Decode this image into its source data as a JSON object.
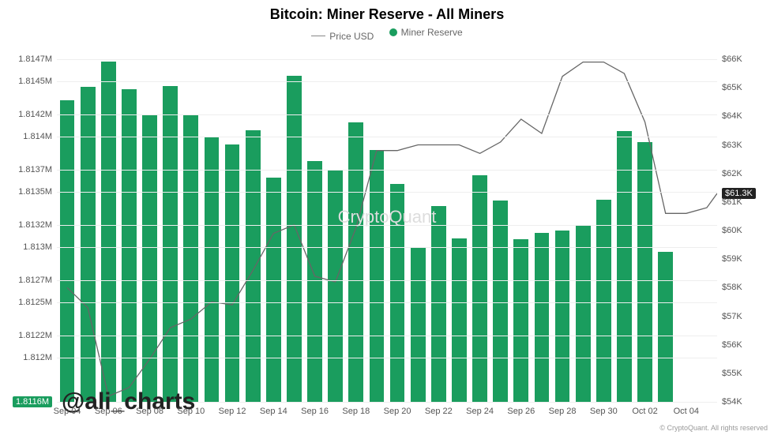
{
  "chart": {
    "type": "bar+line",
    "title": "Bitcoin: Miner Reserve - All Miners",
    "title_fontsize": 18,
    "background_color": "#ffffff",
    "grid_color": "#eeeeee",
    "legend": {
      "line": {
        "label": "Price USD",
        "color": "#888888"
      },
      "bar": {
        "label": "Miner Reserve",
        "color": "#1a9d5e"
      }
    },
    "y_left": {
      "min": 1.8116,
      "max": 1.8147,
      "unit": "M",
      "ticks": [
        {
          "v": 1.8147,
          "label": "1.8147M"
        },
        {
          "v": 1.8145,
          "label": "1.8145M"
        },
        {
          "v": 1.8142,
          "label": "1.8142M"
        },
        {
          "v": 1.814,
          "label": "1.814M"
        },
        {
          "v": 1.8137,
          "label": "1.8137M"
        },
        {
          "v": 1.8135,
          "label": "1.8135M"
        },
        {
          "v": 1.8132,
          "label": "1.8132M"
        },
        {
          "v": 1.813,
          "label": "1.813M"
        },
        {
          "v": 1.8127,
          "label": "1.8127M"
        },
        {
          "v": 1.8125,
          "label": "1.8125M"
        },
        {
          "v": 1.8122,
          "label": "1.8122M"
        },
        {
          "v": 1.812,
          "label": "1.812M"
        },
        {
          "v": 1.8116,
          "label": "1.8116M",
          "highlight": true
        }
      ]
    },
    "y_right": {
      "min": 54,
      "max": 66,
      "unit": "K",
      "ticks": [
        {
          "v": 66,
          "label": "$66K"
        },
        {
          "v": 65,
          "label": "$65K"
        },
        {
          "v": 64,
          "label": "$64K"
        },
        {
          "v": 63,
          "label": "$63K"
        },
        {
          "v": 62,
          "label": "$62K"
        },
        {
          "v": 61.3,
          "label": "$61.3K",
          "highlight": true
        },
        {
          "v": 61,
          "label": "$61K"
        },
        {
          "v": 60,
          "label": "$60K"
        },
        {
          "v": 59,
          "label": "$59K"
        },
        {
          "v": 58,
          "label": "$58K"
        },
        {
          "v": 57,
          "label": "$57K"
        },
        {
          "v": 56,
          "label": "$56K"
        },
        {
          "v": 55,
          "label": "$55K"
        },
        {
          "v": 54,
          "label": "$54K"
        }
      ]
    },
    "x_labels": [
      "Sep 04",
      "Sep 06",
      "Sep 08",
      "Sep 10",
      "Sep 12",
      "Sep 14",
      "Sep 16",
      "Sep 18",
      "Sep 20",
      "Sep 22",
      "Sep 24",
      "Sep 26",
      "Sep 28",
      "Sep 30",
      "Oct 02",
      "Oct 04"
    ],
    "bars": {
      "color": "#1a9d5e",
      "width_ratio": 0.72,
      "values": [
        1.81433,
        1.81445,
        1.81468,
        1.81443,
        1.8142,
        1.81446,
        1.81419,
        1.81399,
        1.81393,
        1.81406,
        1.81363,
        1.81455,
        1.81378,
        1.8137,
        1.81413,
        1.81388,
        1.81357,
        1.813,
        1.81337,
        1.81308,
        1.81365,
        1.81342,
        1.81307,
        1.81313,
        1.81315,
        1.8132,
        1.81343,
        1.81405,
        1.81395,
        1.81296,
        1.8116,
        1.8116
      ]
    },
    "line": {
      "color": "#666666",
      "width": 1.3,
      "values": [
        58.0,
        57.3,
        54.2,
        54.5,
        55.5,
        56.6,
        56.9,
        57.5,
        57.4,
        58.6,
        59.9,
        60.2,
        58.4,
        58.2,
        60.1,
        62.8,
        62.8,
        63.0,
        63.0,
        63.0,
        62.7,
        63.1,
        63.9,
        63.4,
        65.4,
        65.9,
        65.9,
        65.5,
        63.8,
        60.6,
        60.6,
        60.8,
        61.3
      ]
    },
    "watermark_center": "CryptoQuant",
    "watermark_handle": "@ali_charts",
    "copyright": "© CryptoQuant. All rights reserved"
  }
}
